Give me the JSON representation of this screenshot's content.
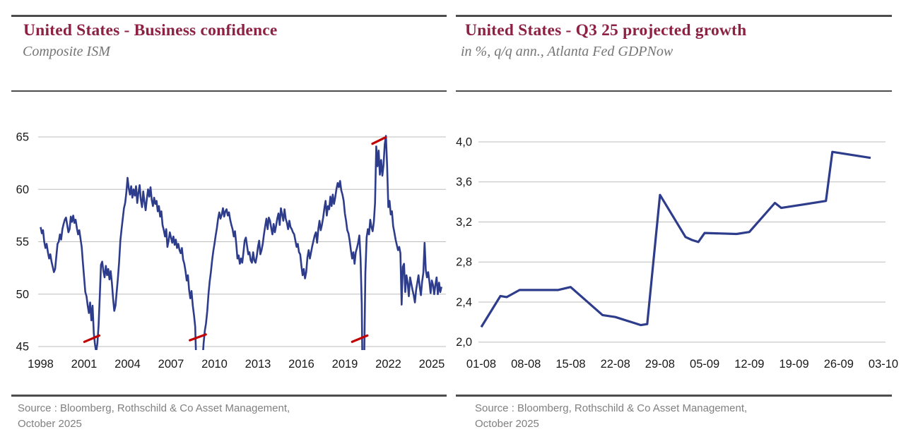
{
  "panels": [
    {
      "title": "United States - Business confidence",
      "subtitle": "Composite ISM",
      "source_line1": "Source : Bloomberg, Rothschild & Co Asset Management,",
      "source_line2": "October 2025"
    },
    {
      "title": "United States - Q3 25 projected growth",
      "subtitle": "in %, q/q ann., Atlanta Fed GDPNow",
      "source_line1": "Source : Bloomberg, Rothschild & Co Asset Management,",
      "source_line2": "October 2025"
    }
  ],
  "colors": {
    "title_burgundy": "#8d2144",
    "subtitle_gray": "#757575",
    "source_gray": "#808080",
    "rule_gray": "#4d4d4d",
    "gridline_gray": "#bdbdbd",
    "axis_text": "#191919",
    "line_navy": "#2e3c8c",
    "annotation_red": "#c00000"
  },
  "chart_data": [
    {
      "type": "line",
      "title": "United States - Business confidence",
      "subtitle": "Composite ISM",
      "frequency": "monthly",
      "start": "1998-01",
      "end": "2025-09",
      "xlim": [
        1997.85,
        2025.95
      ],
      "ylim": [
        45,
        65
      ],
      "grid": true,
      "legend": "none",
      "line_color": "#2e3c8c",
      "annotation_color": "#c00000",
      "x_ticks": [
        "1998",
        "2001",
        "2004",
        "2007",
        "2010",
        "2013",
        "2016",
        "2019",
        "2022",
        "2025"
      ],
      "y_ticks": [
        {
          "label": "65",
          "value": 65
        },
        {
          "label": "60",
          "value": 60
        },
        {
          "label": "55",
          "value": 55
        },
        {
          "label": "50",
          "value": 50
        },
        {
          "label": "45",
          "value": 45
        }
      ],
      "note": "values below ~44.7 are clipped by the plot edge in the original (2008-09, 2020 troughs)",
      "values": [
        56.4,
        55.8,
        56.1,
        55.0,
        54.4,
        54.8,
        54.0,
        53.4,
        53.8,
        53.1,
        52.6,
        52.1,
        52.4,
        53.6,
        54.8,
        55.0,
        55.7,
        55.2,
        56.2,
        56.7,
        57.1,
        57.3,
        56.6,
        55.9,
        56.2,
        57.4,
        56.9,
        57.5,
        56.8,
        57.1,
        56.3,
        55.7,
        56.1,
        55.3,
        54.5,
        53.0,
        51.6,
        50.2,
        49.8,
        48.9,
        48.2,
        49.2,
        47.5,
        48.9,
        46.3,
        45.2,
        44.5,
        45.3,
        47.0,
        49.8,
        52.8,
        53.1,
        52.2,
        51.6,
        52.7,
        51.8,
        52.4,
        51.4,
        52.2,
        51.1,
        49.6,
        48.4,
        48.9,
        50.2,
        51.5,
        53.0,
        55.1,
        56.2,
        57.2,
        58.2,
        58.7,
        59.7,
        61.1,
        60.1,
        59.5,
        60.3,
        59.2,
        60.0,
        59.4,
        60.3,
        58.7,
        59.7,
        60.4,
        59.0,
        58.3,
        59.8,
        58.8,
        58.0,
        59.1,
        60.0,
        59.3,
        60.2,
        59.0,
        58.4,
        59.2,
        58.6,
        58.9,
        57.9,
        58.4,
        57.4,
        57.9,
        56.6,
        56.1,
        55.5,
        56.2,
        54.5,
        55.1,
        55.9,
        55.4,
        54.9,
        55.5,
        54.7,
        55.2,
        54.4,
        54.8,
        54.2,
        53.9,
        54.4,
        53.3,
        52.9,
        52.2,
        51.3,
        51.8,
        50.4,
        49.6,
        50.3,
        48.9,
        48.0,
        46.9,
        43.0,
        39.5,
        38.8,
        39.9,
        41.6,
        43.6,
        45.3,
        46.5,
        47.2,
        48.4,
        50.0,
        51.2,
        52.1,
        53.2,
        54.1,
        54.8,
        55.6,
        56.3,
        57.2,
        57.8,
        57.2,
        57.6,
        58.2,
        57.4,
        57.9,
        58.1,
        57.5,
        57.8,
        57.1,
        56.6,
        56.2,
        55.5,
        56.0,
        54.8,
        53.4,
        53.7,
        52.9,
        53.4,
        53.0,
        54.0,
        55.1,
        55.4,
        54.6,
        53.8,
        54.0,
        53.2,
        53.0,
        54.0,
        53.2,
        53.0,
        53.6,
        54.5,
        55.1,
        53.8,
        54.2,
        54.8,
        55.7,
        56.5,
        57.2,
        56.2,
        57.3,
        57.0,
        56.3,
        55.7,
        56.7,
        55.9,
        56.5,
        57.2,
        57.7,
        56.6,
        58.2,
        57.6,
        57.0,
        58.1,
        57.2,
        56.8,
        56.2,
        57.0,
        56.4,
        56.2,
        55.9,
        55.7,
        55.1,
        54.5,
        54.8,
        54.0,
        53.8,
        52.7,
        51.8,
        52.4,
        51.5,
        52.1,
        53.5,
        54.2,
        53.4,
        54.0,
        54.6,
        55.1,
        55.6,
        55.9,
        54.9,
        56.2,
        57.0,
        56.1,
        56.6,
        57.3,
        58.2,
        58.9,
        57.5,
        58.4,
        58.1,
        59.3,
        58.4,
        59.5,
        58.6,
        59.2,
        60.0,
        60.6,
        60.2,
        60.8,
        59.9,
        59.5,
        58.9,
        57.7,
        57.0,
        56.1,
        55.8,
        55.1,
        54.2,
        53.4,
        54.0,
        52.9,
        54.0,
        54.4,
        54.9,
        55.6,
        53.4,
        49.0,
        37.9,
        43.6,
        52.0,
        55.4,
        56.2,
        55.7,
        57.1,
        56.4,
        56.0,
        56.9,
        58.7,
        64.1,
        62.2,
        63.7,
        61.4,
        62.8,
        61.3,
        62.3,
        64.3,
        65.1,
        62.2,
        58.3,
        58.9,
        57.6,
        57.9,
        56.5,
        55.9,
        55.2,
        54.7,
        54.2,
        54.5,
        53.9,
        49.0,
        52.6,
        52.9,
        50.2,
        51.8,
        51.1,
        49.8,
        51.6,
        51.0,
        50.4,
        49.9,
        49.2,
        50.4,
        51.1,
        51.8,
        50.7,
        49.9,
        51.2,
        52.0,
        54.9,
        52.3,
        51.6,
        52.1,
        51.2,
        50.1,
        51.3,
        50.9,
        50.0,
        50.9,
        51.6,
        50.0,
        51.1,
        50.2,
        50.7
      ],
      "annotations": [
        {
          "x1": 2001.02,
          "y1": 45.45,
          "x2": 2002.05,
          "y2": 46.05
        },
        {
          "x1": 2008.3,
          "y1": 45.6,
          "x2": 2009.4,
          "y2": 46.15
        },
        {
          "x1": 2019.5,
          "y1": 45.45,
          "x2": 2020.55,
          "y2": 46.05
        },
        {
          "x1": 2020.9,
          "y1": 64.35,
          "x2": 2021.8,
          "y2": 64.95
        }
      ]
    },
    {
      "type": "line",
      "title": "United States - Q3 25 projected growth",
      "subtitle": "in %, q/q ann., Atlanta Fed GDPNow",
      "frequency": "irregular-daily",
      "xlim_days": [
        0,
        63
      ],
      "ylim": [
        2.0,
        4.0
      ],
      "grid": true,
      "legend": "none",
      "line_color": "#2e3c8c",
      "x_ticks": [
        "01-08",
        "08-08",
        "15-08",
        "22-08",
        "29-08",
        "05-09",
        "12-09",
        "19-09",
        "26-09",
        "03-10"
      ],
      "y_ticks": [
        {
          "label": "4,0",
          "value": 4.0
        },
        {
          "label": "3,6",
          "value": 3.6
        },
        {
          "label": "3,2",
          "value": 3.2
        },
        {
          "label": "2,8",
          "value": 2.8
        },
        {
          "label": "2,4",
          "value": 2.4
        },
        {
          "label": "2,0",
          "value": 2.0
        }
      ],
      "points": [
        {
          "date": "01-08",
          "day": 0,
          "value": 2.15
        },
        {
          "date": "04-08",
          "day": 3,
          "value": 2.46
        },
        {
          "date": "05-08",
          "day": 4,
          "value": 2.45
        },
        {
          "date": "07-08",
          "day": 6,
          "value": 2.52
        },
        {
          "date": "13-08",
          "day": 12,
          "value": 2.52
        },
        {
          "date": "15-08",
          "day": 14,
          "value": 2.55
        },
        {
          "date": "20-08",
          "day": 19,
          "value": 2.27
        },
        {
          "date": "22-08",
          "day": 21,
          "value": 2.25
        },
        {
          "date": "26-08",
          "day": 25,
          "value": 2.17
        },
        {
          "date": "27-08",
          "day": 26,
          "value": 2.18
        },
        {
          "date": "29-08",
          "day": 28,
          "value": 3.47
        },
        {
          "date": "02-09",
          "day": 32,
          "value": 3.05
        },
        {
          "date": "03-09",
          "day": 33,
          "value": 3.02
        },
        {
          "date": "04-09",
          "day": 34,
          "value": 3.0
        },
        {
          "date": "05-09",
          "day": 35,
          "value": 3.09
        },
        {
          "date": "10-09",
          "day": 40,
          "value": 3.08
        },
        {
          "date": "12-09",
          "day": 42,
          "value": 3.1
        },
        {
          "date": "16-09",
          "day": 46,
          "value": 3.39
        },
        {
          "date": "17-09",
          "day": 47,
          "value": 3.34
        },
        {
          "date": "24-09",
          "day": 54,
          "value": 3.41
        },
        {
          "date": "25-09",
          "day": 55,
          "value": 3.9
        },
        {
          "date": "01-10",
          "day": 61,
          "value": 3.84
        }
      ]
    }
  ]
}
